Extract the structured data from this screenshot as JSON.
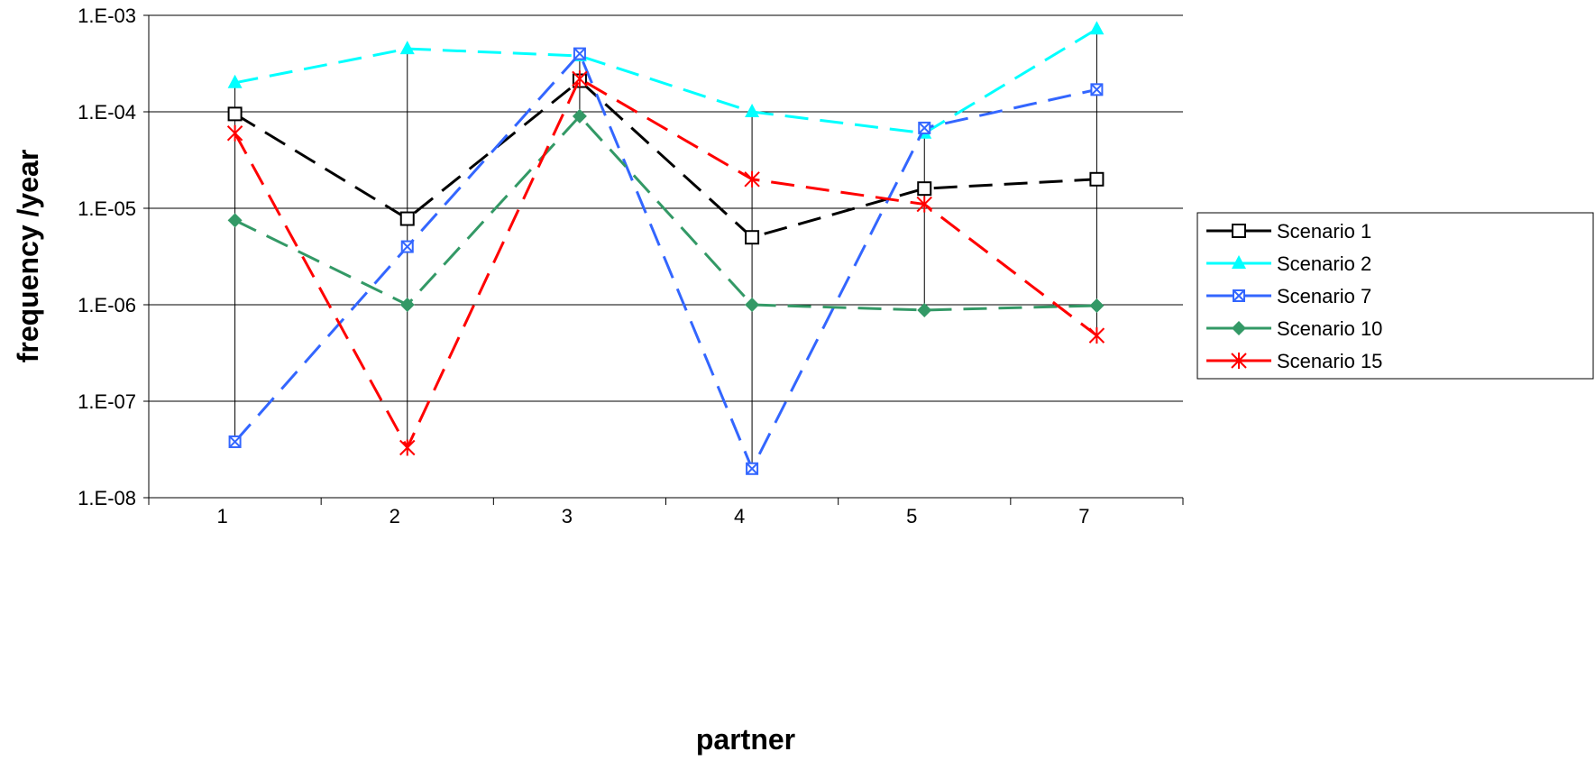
{
  "chart_data": {
    "type": "line",
    "title": "",
    "xlabel": "partner",
    "ylabel": "frequency /year",
    "yscale": "log",
    "ylim": [
      1e-08,
      0.001
    ],
    "y_tick_labels": [
      "1.E-08",
      "1.E-07",
      "1.E-06",
      "1.E-05",
      "1.E-04",
      "1.E-03"
    ],
    "categories": [
      "1",
      "2",
      "3",
      "4",
      "5",
      "7"
    ],
    "grid": "horizontal",
    "legend_position": "right",
    "series": [
      {
        "name": "Scenario 1",
        "color": "#000000",
        "marker": "open-square",
        "values": [
          9.5e-05,
          7.8e-06,
          0.00021,
          5e-06,
          1.6e-05,
          2e-05
        ]
      },
      {
        "name": "Scenario 2",
        "color": "#00ffff",
        "marker": "triangle",
        "values": [
          0.0002,
          0.00045,
          0.00038,
          0.0001,
          6e-05,
          0.00072
        ]
      },
      {
        "name": "Scenario 7",
        "color": "#3366ff",
        "marker": "crossed-square",
        "values": [
          3.8e-08,
          4e-06,
          0.0004,
          2e-08,
          6.8e-05,
          0.00017
        ]
      },
      {
        "name": "Scenario 10",
        "color": "#339966",
        "marker": "diamond",
        "values": [
          7.5e-06,
          1e-06,
          9e-05,
          1e-06,
          8.8e-07,
          9.8e-07
        ]
      },
      {
        "name": "Scenario 15",
        "color": "#ff0000",
        "marker": "star",
        "values": [
          6e-05,
          3.3e-08,
          0.00022,
          2e-05,
          1.1e-05,
          4.8e-07
        ]
      }
    ]
  }
}
